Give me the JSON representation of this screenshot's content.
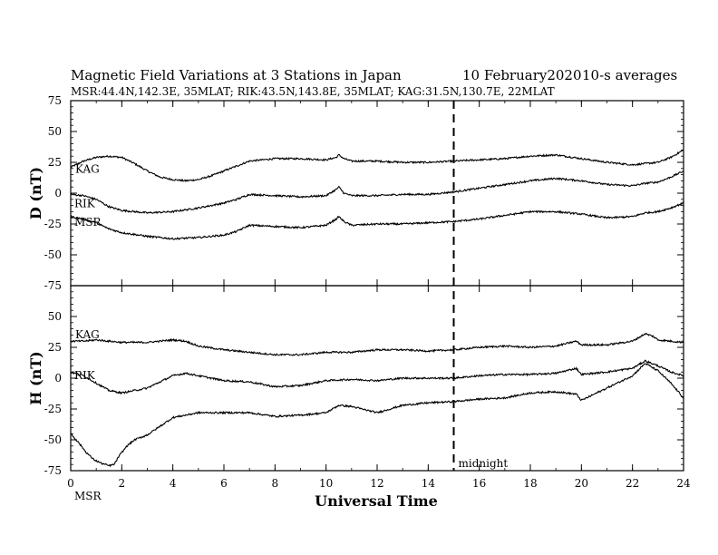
{
  "chart_data": {
    "type": "line",
    "title": "Magnetic Field Variations at 3 Stations in Japan",
    "date": "10 February2020",
    "averaging": "10-s averages",
    "subtitle": "MSR:44.4N,142.3E, 35MLAT;  RIK:43.5N,143.8E, 35MLAT;  KAG:31.5N,130.7E, 22MLAT",
    "xlabel": "Universal Time",
    "xlim": [
      0,
      24
    ],
    "xticks": [
      0,
      2,
      4,
      6,
      8,
      10,
      12,
      14,
      16,
      18,
      20,
      22,
      24
    ],
    "annotations": [
      {
        "text": "midnight",
        "x": 15,
        "style": "dashed vertical line"
      }
    ],
    "panels": [
      {
        "ylabel": "D (nT)",
        "ylim": [
          -75,
          75
        ],
        "yticks": [
          75,
          50,
          25,
          0,
          -25,
          -50,
          -75
        ],
        "series": [
          {
            "name": "KAG",
            "x": [
              0,
              0.5,
              1,
              1.5,
              2,
              2.5,
              3,
              3.5,
              4,
              4.5,
              5,
              5.5,
              6,
              6.5,
              7,
              8,
              9,
              10,
              10.4,
              10.5,
              10.7,
              11,
              12,
              13,
              14,
              15,
              16,
              17,
              18,
              19,
              20,
              21,
              22,
              22.5,
              23,
              23.5,
              24
            ],
            "y": [
              21,
              26,
              29,
              30,
              29,
              24,
              18,
              13,
              11,
              10,
              11,
              14,
              18,
              22,
              26,
              28,
              28,
              27,
              29,
              31,
              28,
              26,
              26,
              25,
              25,
              26,
              27,
              28,
              30,
              31,
              28,
              25,
              23,
              24,
              25,
              29,
              35
            ]
          },
          {
            "name": "RIK",
            "x": [
              0,
              0.5,
              1,
              1.5,
              2,
              3,
              4,
              5,
              6,
              6.5,
              7,
              8,
              9,
              10,
              10.4,
              10.5,
              10.7,
              11,
              12,
              13,
              14,
              15,
              16,
              17,
              18,
              19,
              20,
              21,
              22,
              22.5,
              23,
              23.5,
              24
            ],
            "y": [
              -1,
              -2,
              -5,
              -11,
              -14,
              -16,
              -15,
              -12,
              -8,
              -5,
              -1,
              -2,
              -3,
              -2,
              3,
              5,
              0,
              -2,
              -2,
              -1,
              -1,
              1,
              4,
              7,
              10,
              12,
              10,
              7,
              6,
              8,
              9,
              13,
              18
            ]
          },
          {
            "name": "MSR",
            "x": [
              0,
              0.5,
              1,
              1.5,
              2,
              3,
              4,
              5,
              6,
              6.5,
              7,
              8,
              9,
              10,
              10.4,
              10.5,
              10.7,
              11,
              12,
              13,
              14,
              15,
              16,
              17,
              18,
              19,
              20,
              21,
              22,
              22.5,
              23,
              23.5,
              24
            ],
            "y": [
              -19,
              -21,
              -24,
              -29,
              -32,
              -35,
              -37,
              -36,
              -34,
              -31,
              -26,
              -27,
              -28,
              -26,
              -21,
              -19,
              -23,
              -26,
              -25,
              -25,
              -24,
              -23,
              -21,
              -18,
              -15,
              -15,
              -17,
              -20,
              -19,
              -16,
              -15,
              -12,
              -8
            ]
          }
        ]
      },
      {
        "ylabel": "H (nT)",
        "ylim": [
          -75,
          75
        ],
        "yticks": [
          50,
          25,
          0,
          -25,
          -50,
          -75
        ],
        "series": [
          {
            "name": "KAG",
            "x": [
              0,
              0.5,
              1,
              1.5,
              2,
              3,
              4,
              4.5,
              5,
              6,
              7,
              8,
              9,
              10,
              11,
              12,
              13,
              14,
              15,
              16,
              17,
              18,
              19,
              19.8,
              20,
              21,
              22,
              22.5,
              22.8,
              23,
              23.5,
              24
            ],
            "y": [
              30,
              30,
              31,
              30,
              29,
              29,
              31,
              30,
              26,
              23,
              21,
              19,
              19,
              21,
              21,
              23,
              23,
              22,
              23,
              25,
              26,
              25,
              26,
              30,
              27,
              27,
              30,
              36,
              34,
              31,
              30,
              29
            ]
          },
          {
            "name": "RIK",
            "x": [
              0,
              0.5,
              1,
              1.5,
              2,
              3,
              4,
              4.5,
              5,
              6,
              7,
              8,
              9,
              10,
              11,
              12,
              13,
              14,
              15,
              16,
              17,
              18,
              19,
              19.8,
              20,
              21,
              22,
              22.5,
              23,
              23.5,
              24
            ],
            "y": [
              5,
              2,
              -4,
              -10,
              -12,
              -8,
              2,
              4,
              2,
              -2,
              -3,
              -7,
              -6,
              -2,
              -1,
              -2,
              0,
              0,
              0,
              2,
              3,
              3,
              4,
              8,
              3,
              5,
              8,
              14,
              10,
              5,
              2
            ]
          },
          {
            "name": "MSR",
            "x": [
              0,
              0.3,
              0.6,
              0.9,
              1.2,
              1.5,
              1.7,
              1.9,
              2.2,
              2.5,
              3,
              3.5,
              4,
              4.5,
              5,
              6,
              7,
              8,
              9,
              10,
              10.5,
              11,
              12,
              13,
              14,
              15,
              16,
              17,
              18,
              19,
              19.8,
              20,
              21,
              22,
              22.5,
              23,
              23.5,
              24
            ],
            "y": [
              -45,
              -52,
              -60,
              -66,
              -69,
              -71,
              -70,
              -63,
              -55,
              -50,
              -46,
              -39,
              -32,
              -30,
              -28,
              -28,
              -28,
              -31,
              -30,
              -28,
              -22,
              -23,
              -28,
              -22,
              -20,
              -19,
              -17,
              -16,
              -12,
              -11,
              -13,
              -18,
              -8,
              2,
              12,
              6,
              -4,
              -16
            ]
          }
        ]
      }
    ]
  }
}
